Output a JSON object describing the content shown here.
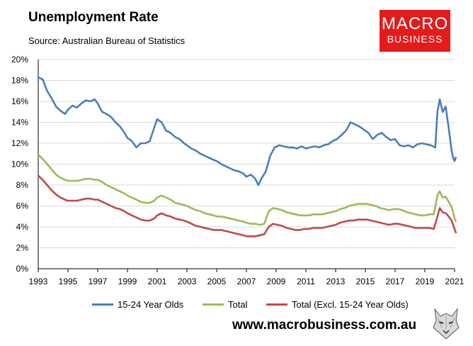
{
  "header": {
    "title": "Unemployment Rate",
    "source": "Source: Australian Bureau of Statistics"
  },
  "logo": {
    "line1": "MACRO",
    "line2": "BUSINESS"
  },
  "website": "www.macrobusiness.com.au",
  "chart_data": {
    "type": "line",
    "title": "Unemployment Rate",
    "xlabel": "",
    "ylabel": "",
    "xlim": [
      1993,
      2021
    ],
    "ylim": [
      0,
      20
    ],
    "x_ticks": [
      "1993",
      "1995",
      "1997",
      "1999",
      "2001",
      "2003",
      "2005",
      "2007",
      "2009",
      "2011",
      "2013",
      "2015",
      "2017",
      "2019",
      "2021"
    ],
    "y_ticks": [
      "0%",
      "2%",
      "4%",
      "6%",
      "8%",
      "10%",
      "12%",
      "14%",
      "16%",
      "18%",
      "20%"
    ],
    "grid": "horizontal",
    "legend_position": "bottom",
    "series": [
      {
        "name": "15-24 Year Olds",
        "color": "#4a7ebb",
        "points": [
          [
            1993.0,
            18.3
          ],
          [
            1993.3,
            18.1
          ],
          [
            1993.6,
            17.0
          ],
          [
            1993.9,
            16.3
          ],
          [
            1994.2,
            15.5
          ],
          [
            1994.5,
            15.1
          ],
          [
            1994.8,
            14.8
          ],
          [
            1995.0,
            15.2
          ],
          [
            1995.3,
            15.6
          ],
          [
            1995.6,
            15.4
          ],
          [
            1995.9,
            15.8
          ],
          [
            1996.2,
            16.1
          ],
          [
            1996.5,
            16.0
          ],
          [
            1996.8,
            16.2
          ],
          [
            1997.0,
            15.8
          ],
          [
            1997.3,
            15.0
          ],
          [
            1997.6,
            14.8
          ],
          [
            1997.9,
            14.5
          ],
          [
            1998.2,
            14.0
          ],
          [
            1998.5,
            13.6
          ],
          [
            1998.8,
            13.0
          ],
          [
            1999.0,
            12.5
          ],
          [
            1999.3,
            12.2
          ],
          [
            1999.6,
            11.6
          ],
          [
            1999.9,
            12.0
          ],
          [
            2000.2,
            12.0
          ],
          [
            2000.5,
            12.2
          ],
          [
            2000.8,
            13.5
          ],
          [
            2001.0,
            14.3
          ],
          [
            2001.3,
            14.0
          ],
          [
            2001.6,
            13.2
          ],
          [
            2001.9,
            13.0
          ],
          [
            2002.2,
            12.6
          ],
          [
            2002.5,
            12.4
          ],
          [
            2002.8,
            12.0
          ],
          [
            2003.0,
            11.8
          ],
          [
            2003.3,
            11.5
          ],
          [
            2003.6,
            11.3
          ],
          [
            2003.9,
            11.0
          ],
          [
            2004.2,
            10.8
          ],
          [
            2004.5,
            10.6
          ],
          [
            2004.8,
            10.4
          ],
          [
            2005.0,
            10.3
          ],
          [
            2005.3,
            10.0
          ],
          [
            2005.6,
            9.8
          ],
          [
            2005.9,
            9.6
          ],
          [
            2006.2,
            9.4
          ],
          [
            2006.5,
            9.3
          ],
          [
            2006.8,
            9.1
          ],
          [
            2007.0,
            8.8
          ],
          [
            2007.3,
            9.0
          ],
          [
            2007.6,
            8.6
          ],
          [
            2007.8,
            8.0
          ],
          [
            2008.0,
            8.6
          ],
          [
            2008.3,
            9.3
          ],
          [
            2008.6,
            10.8
          ],
          [
            2008.9,
            11.6
          ],
          [
            2009.2,
            11.8
          ],
          [
            2009.5,
            11.7
          ],
          [
            2009.8,
            11.6
          ],
          [
            2010.1,
            11.6
          ],
          [
            2010.4,
            11.5
          ],
          [
            2010.7,
            11.7
          ],
          [
            2011.0,
            11.5
          ],
          [
            2011.3,
            11.6
          ],
          [
            2011.6,
            11.7
          ],
          [
            2011.9,
            11.6
          ],
          [
            2012.2,
            11.8
          ],
          [
            2012.5,
            11.9
          ],
          [
            2012.8,
            12.2
          ],
          [
            2013.1,
            12.4
          ],
          [
            2013.4,
            12.8
          ],
          [
            2013.7,
            13.2
          ],
          [
            2014.0,
            14.0
          ],
          [
            2014.3,
            13.8
          ],
          [
            2014.6,
            13.6
          ],
          [
            2014.9,
            13.3
          ],
          [
            2015.2,
            13.0
          ],
          [
            2015.5,
            12.4
          ],
          [
            2015.8,
            12.8
          ],
          [
            2016.1,
            13.0
          ],
          [
            2016.4,
            12.6
          ],
          [
            2016.7,
            12.3
          ],
          [
            2017.0,
            12.4
          ],
          [
            2017.3,
            11.8
          ],
          [
            2017.6,
            11.7
          ],
          [
            2017.9,
            11.8
          ],
          [
            2018.2,
            11.6
          ],
          [
            2018.5,
            11.9
          ],
          [
            2018.8,
            12.0
          ],
          [
            2019.1,
            11.9
          ],
          [
            2019.4,
            11.8
          ],
          [
            2019.7,
            11.6
          ],
          [
            2019.85,
            15.0
          ],
          [
            2020.0,
            16.2
          ],
          [
            2020.2,
            15.0
          ],
          [
            2020.4,
            15.5
          ],
          [
            2020.6,
            13.5
          ],
          [
            2020.8,
            11.3
          ],
          [
            2020.9,
            10.6
          ],
          [
            2021.0,
            10.3
          ],
          [
            2021.1,
            10.7
          ]
        ]
      },
      {
        "name": "Total",
        "color": "#9bbb59",
        "points": [
          [
            1993.0,
            10.9
          ],
          [
            1993.3,
            10.5
          ],
          [
            1993.6,
            10.0
          ],
          [
            1993.9,
            9.5
          ],
          [
            1994.2,
            9.0
          ],
          [
            1994.5,
            8.7
          ],
          [
            1994.8,
            8.5
          ],
          [
            1995.0,
            8.4
          ],
          [
            1995.3,
            8.4
          ],
          [
            1995.6,
            8.4
          ],
          [
            1995.9,
            8.5
          ],
          [
            1996.2,
            8.6
          ],
          [
            1996.5,
            8.6
          ],
          [
            1996.8,
            8.5
          ],
          [
            1997.0,
            8.5
          ],
          [
            1997.3,
            8.3
          ],
          [
            1997.6,
            8.0
          ],
          [
            1997.9,
            7.8
          ],
          [
            1998.2,
            7.6
          ],
          [
            1998.5,
            7.4
          ],
          [
            1998.8,
            7.2
          ],
          [
            1999.0,
            7.0
          ],
          [
            1999.3,
            6.8
          ],
          [
            1999.6,
            6.6
          ],
          [
            1999.9,
            6.4
          ],
          [
            2000.2,
            6.3
          ],
          [
            2000.5,
            6.3
          ],
          [
            2000.8,
            6.5
          ],
          [
            2001.0,
            6.8
          ],
          [
            2001.3,
            7.0
          ],
          [
            2001.6,
            6.8
          ],
          [
            2001.9,
            6.6
          ],
          [
            2002.2,
            6.3
          ],
          [
            2002.5,
            6.2
          ],
          [
            2002.8,
            6.1
          ],
          [
            2003.0,
            6.0
          ],
          [
            2003.3,
            5.8
          ],
          [
            2003.6,
            5.6
          ],
          [
            2003.9,
            5.5
          ],
          [
            2004.2,
            5.3
          ],
          [
            2004.5,
            5.2
          ],
          [
            2004.8,
            5.1
          ],
          [
            2005.0,
            5.0
          ],
          [
            2005.3,
            5.0
          ],
          [
            2005.6,
            4.9
          ],
          [
            2005.9,
            4.8
          ],
          [
            2006.2,
            4.7
          ],
          [
            2006.5,
            4.6
          ],
          [
            2006.8,
            4.5
          ],
          [
            2007.0,
            4.4
          ],
          [
            2007.3,
            4.3
          ],
          [
            2007.6,
            4.3
          ],
          [
            2007.9,
            4.2
          ],
          [
            2008.2,
            4.3
          ],
          [
            2008.5,
            5.5
          ],
          [
            2008.8,
            5.8
          ],
          [
            2009.1,
            5.7
          ],
          [
            2009.4,
            5.6
          ],
          [
            2009.7,
            5.4
          ],
          [
            2010.0,
            5.3
          ],
          [
            2010.3,
            5.2
          ],
          [
            2010.6,
            5.1
          ],
          [
            2010.9,
            5.1
          ],
          [
            2011.2,
            5.1
          ],
          [
            2011.5,
            5.2
          ],
          [
            2011.8,
            5.2
          ],
          [
            2012.1,
            5.2
          ],
          [
            2012.4,
            5.3
          ],
          [
            2012.7,
            5.4
          ],
          [
            2013.0,
            5.5
          ],
          [
            2013.3,
            5.7
          ],
          [
            2013.6,
            5.8
          ],
          [
            2013.9,
            6.0
          ],
          [
            2014.2,
            6.1
          ],
          [
            2014.5,
            6.2
          ],
          [
            2014.8,
            6.2
          ],
          [
            2015.1,
            6.2
          ],
          [
            2015.4,
            6.1
          ],
          [
            2015.7,
            6.0
          ],
          [
            2016.0,
            5.8
          ],
          [
            2016.3,
            5.7
          ],
          [
            2016.6,
            5.6
          ],
          [
            2016.9,
            5.7
          ],
          [
            2017.2,
            5.7
          ],
          [
            2017.5,
            5.6
          ],
          [
            2017.8,
            5.4
          ],
          [
            2018.1,
            5.3
          ],
          [
            2018.4,
            5.2
          ],
          [
            2018.7,
            5.1
          ],
          [
            2019.0,
            5.1
          ],
          [
            2019.3,
            5.2
          ],
          [
            2019.6,
            5.2
          ],
          [
            2019.85,
            7.0
          ],
          [
            2020.0,
            7.4
          ],
          [
            2020.2,
            6.8
          ],
          [
            2020.4,
            6.9
          ],
          [
            2020.6,
            6.4
          ],
          [
            2020.8,
            5.9
          ],
          [
            2020.9,
            5.4
          ],
          [
            2021.0,
            4.8
          ],
          [
            2021.1,
            4.5
          ]
        ]
      },
      {
        "name": "Total (Excl. 15-24 Year Olds)",
        "color": "#be4b48",
        "points": [
          [
            1993.0,
            8.9
          ],
          [
            1993.3,
            8.5
          ],
          [
            1993.6,
            8.0
          ],
          [
            1993.9,
            7.5
          ],
          [
            1994.2,
            7.1
          ],
          [
            1994.5,
            6.8
          ],
          [
            1994.8,
            6.6
          ],
          [
            1995.0,
            6.5
          ],
          [
            1995.3,
            6.5
          ],
          [
            1995.6,
            6.5
          ],
          [
            1995.9,
            6.6
          ],
          [
            1996.2,
            6.7
          ],
          [
            1996.5,
            6.7
          ],
          [
            1996.8,
            6.6
          ],
          [
            1997.0,
            6.6
          ],
          [
            1997.3,
            6.4
          ],
          [
            1997.6,
            6.2
          ],
          [
            1997.9,
            6.0
          ],
          [
            1998.2,
            5.8
          ],
          [
            1998.5,
            5.7
          ],
          [
            1998.8,
            5.5
          ],
          [
            1999.0,
            5.3
          ],
          [
            1999.3,
            5.1
          ],
          [
            1999.6,
            4.9
          ],
          [
            1999.9,
            4.7
          ],
          [
            2000.2,
            4.6
          ],
          [
            2000.5,
            4.6
          ],
          [
            2000.8,
            4.8
          ],
          [
            2001.0,
            5.1
          ],
          [
            2001.3,
            5.3
          ],
          [
            2001.6,
            5.1
          ],
          [
            2001.9,
            5.0
          ],
          [
            2002.2,
            4.8
          ],
          [
            2002.5,
            4.7
          ],
          [
            2002.8,
            4.6
          ],
          [
            2003.0,
            4.5
          ],
          [
            2003.3,
            4.3
          ],
          [
            2003.6,
            4.1
          ],
          [
            2003.9,
            4.0
          ],
          [
            2004.2,
            3.9
          ],
          [
            2004.5,
            3.8
          ],
          [
            2004.8,
            3.7
          ],
          [
            2005.0,
            3.7
          ],
          [
            2005.3,
            3.7
          ],
          [
            2005.6,
            3.6
          ],
          [
            2005.9,
            3.5
          ],
          [
            2006.2,
            3.4
          ],
          [
            2006.5,
            3.3
          ],
          [
            2006.8,
            3.2
          ],
          [
            2007.0,
            3.1
          ],
          [
            2007.3,
            3.1
          ],
          [
            2007.6,
            3.1
          ],
          [
            2007.9,
            3.2
          ],
          [
            2008.2,
            3.3
          ],
          [
            2008.5,
            4.0
          ],
          [
            2008.8,
            4.3
          ],
          [
            2009.1,
            4.2
          ],
          [
            2009.4,
            4.1
          ],
          [
            2009.7,
            3.9
          ],
          [
            2010.0,
            3.8
          ],
          [
            2010.3,
            3.7
          ],
          [
            2010.6,
            3.7
          ],
          [
            2010.9,
            3.8
          ],
          [
            2011.2,
            3.8
          ],
          [
            2011.5,
            3.9
          ],
          [
            2011.8,
            3.9
          ],
          [
            2012.1,
            3.9
          ],
          [
            2012.4,
            4.0
          ],
          [
            2012.7,
            4.1
          ],
          [
            2013.0,
            4.2
          ],
          [
            2013.3,
            4.4
          ],
          [
            2013.6,
            4.5
          ],
          [
            2013.9,
            4.6
          ],
          [
            2014.2,
            4.6
          ],
          [
            2014.5,
            4.7
          ],
          [
            2014.8,
            4.7
          ],
          [
            2015.1,
            4.7
          ],
          [
            2015.4,
            4.6
          ],
          [
            2015.7,
            4.5
          ],
          [
            2016.0,
            4.4
          ],
          [
            2016.3,
            4.3
          ],
          [
            2016.6,
            4.2
          ],
          [
            2016.9,
            4.3
          ],
          [
            2017.2,
            4.3
          ],
          [
            2017.5,
            4.2
          ],
          [
            2017.8,
            4.1
          ],
          [
            2018.1,
            4.0
          ],
          [
            2018.4,
            3.9
          ],
          [
            2018.7,
            3.9
          ],
          [
            2019.0,
            3.9
          ],
          [
            2019.3,
            3.9
          ],
          [
            2019.6,
            3.8
          ],
          [
            2019.85,
            5.0
          ],
          [
            2020.0,
            5.8
          ],
          [
            2020.2,
            5.4
          ],
          [
            2020.4,
            5.3
          ],
          [
            2020.6,
            5.0
          ],
          [
            2020.8,
            4.6
          ],
          [
            2020.9,
            4.2
          ],
          [
            2021.0,
            3.8
          ],
          [
            2021.1,
            3.4
          ]
        ]
      }
    ]
  }
}
